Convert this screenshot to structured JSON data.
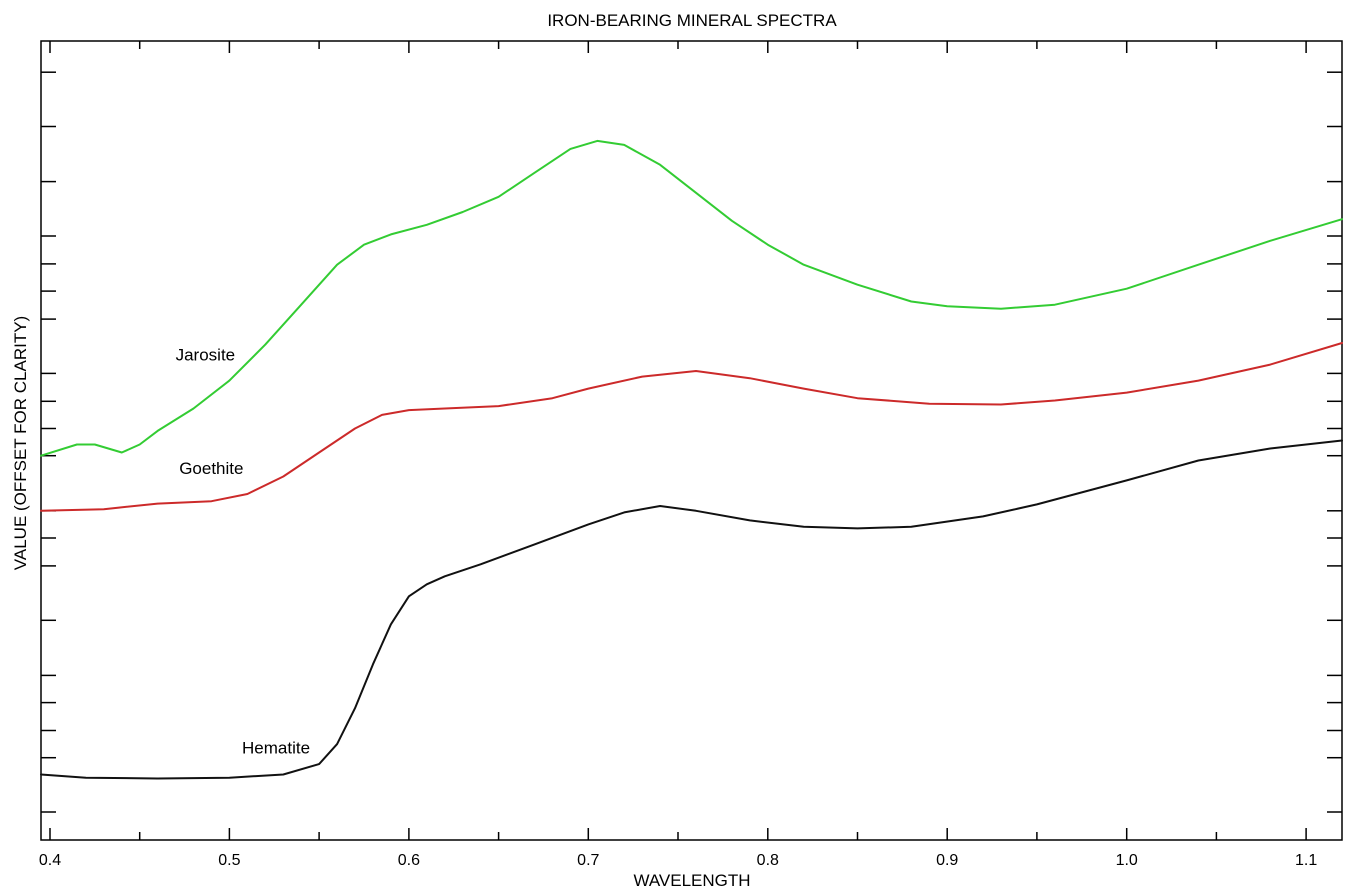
{
  "chart_data": {
    "type": "line",
    "title": "IRON-BEARING MINERAL SPECTRA",
    "xlabel": "WAVELENGTH",
    "ylabel": "VALUE (OFFSET FOR CLARITY)",
    "xlim": [
      0.395,
      1.12
    ],
    "ylim": [
      0,
      1
    ],
    "x_ticks": [
      "0.4",
      "0.5",
      "0.6",
      "0.7",
      "0.8",
      "0.9",
      "1.0",
      "1.1"
    ],
    "x_tick_values": [
      0.4,
      0.5,
      0.6,
      0.7,
      0.8,
      0.9,
      1.0,
      1.1
    ],
    "y_tick_values": [
      0.035,
      0.103,
      0.137,
      0.172,
      0.206,
      0.275,
      0.343,
      0.378,
      0.412,
      0.481,
      0.515,
      0.549,
      0.584,
      0.652,
      0.687,
      0.721,
      0.756,
      0.824,
      0.893,
      0.961
    ],
    "y_tick_labels_shown": false,
    "grid": false,
    "legend": "inline labels",
    "series": [
      {
        "name": "Jarosite",
        "color": "#33cc33",
        "x": [
          0.395,
          0.415,
          0.425,
          0.44,
          0.45,
          0.46,
          0.48,
          0.5,
          0.52,
          0.54,
          0.56,
          0.575,
          0.59,
          0.61,
          0.63,
          0.65,
          0.67,
          0.69,
          0.705,
          0.72,
          0.74,
          0.76,
          0.78,
          0.8,
          0.82,
          0.85,
          0.88,
          0.9,
          0.93,
          0.96,
          1.0,
          1.04,
          1.08,
          1.12
        ],
        "y": [
          0.481,
          0.495,
          0.495,
          0.485,
          0.495,
          0.512,
          0.54,
          0.575,
          0.62,
          0.67,
          0.72,
          0.745,
          0.758,
          0.77,
          0.786,
          0.805,
          0.835,
          0.865,
          0.875,
          0.87,
          0.845,
          0.81,
          0.775,
          0.745,
          0.72,
          0.695,
          0.674,
          0.668,
          0.665,
          0.67,
          0.69,
          0.72,
          0.75,
          0.777
        ]
      },
      {
        "name": "Goethite",
        "color": "#cc2a2a",
        "x": [
          0.395,
          0.43,
          0.46,
          0.49,
          0.51,
          0.53,
          0.55,
          0.57,
          0.585,
          0.6,
          0.62,
          0.65,
          0.68,
          0.7,
          0.73,
          0.76,
          0.79,
          0.82,
          0.85,
          0.89,
          0.93,
          0.96,
          1.0,
          1.04,
          1.08,
          1.12
        ],
        "y": [
          0.412,
          0.414,
          0.421,
          0.424,
          0.433,
          0.455,
          0.485,
          0.515,
          0.532,
          0.538,
          0.54,
          0.543,
          0.553,
          0.565,
          0.58,
          0.587,
          0.578,
          0.565,
          0.553,
          0.546,
          0.545,
          0.55,
          0.56,
          0.575,
          0.595,
          0.622
        ]
      },
      {
        "name": "Hematite",
        "color": "#111111",
        "x": [
          0.395,
          0.42,
          0.46,
          0.5,
          0.53,
          0.55,
          0.56,
          0.57,
          0.58,
          0.59,
          0.6,
          0.61,
          0.62,
          0.64,
          0.67,
          0.7,
          0.72,
          0.74,
          0.76,
          0.79,
          0.82,
          0.85,
          0.88,
          0.92,
          0.95,
          1.0,
          1.04,
          1.08,
          1.12
        ],
        "y": [
          0.082,
          0.078,
          0.077,
          0.078,
          0.082,
          0.095,
          0.12,
          0.165,
          0.22,
          0.27,
          0.305,
          0.32,
          0.33,
          0.345,
          0.37,
          0.395,
          0.41,
          0.418,
          0.412,
          0.4,
          0.392,
          0.39,
          0.392,
          0.405,
          0.42,
          0.45,
          0.475,
          0.49,
          0.5
        ]
      }
    ],
    "annotations": [
      {
        "text": "Jarosite",
        "x": 0.47,
        "y": 0.6
      },
      {
        "text": "Goethite",
        "x": 0.472,
        "y": 0.458
      },
      {
        "text": "Hematite",
        "x": 0.507,
        "y": 0.108
      }
    ]
  }
}
